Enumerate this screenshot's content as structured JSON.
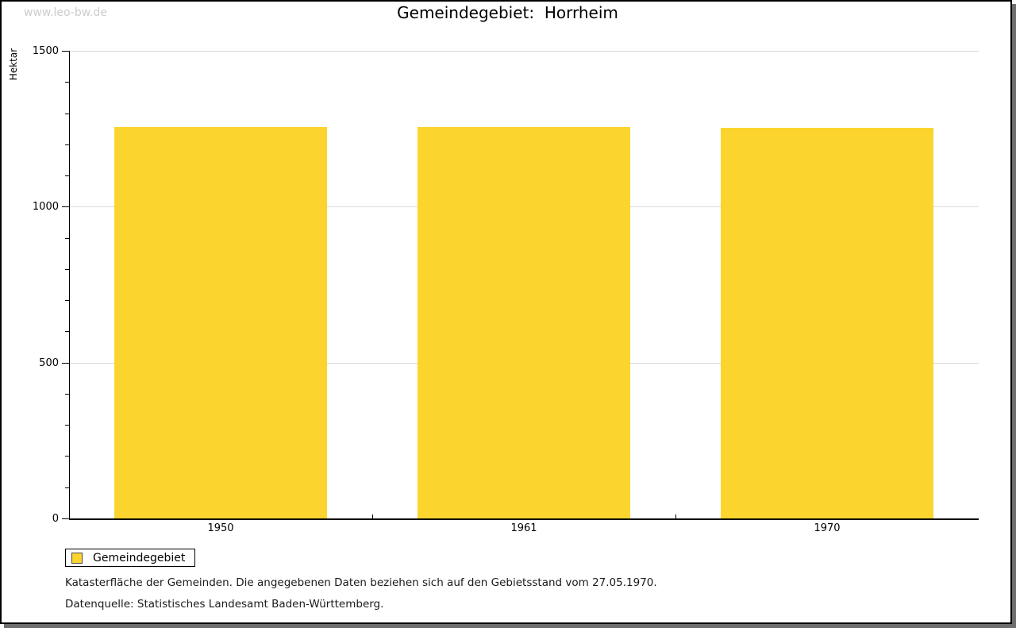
{
  "watermark": "www.leo-bw.de",
  "chart_data": {
    "type": "bar",
    "title": "Gemeindegebiet:  Horrheim",
    "categories": [
      "1950",
      "1961",
      "1970"
    ],
    "series": [
      {
        "name": "Gemeindegebiet",
        "values": [
          1255,
          1255,
          1253
        ]
      }
    ],
    "xlabel": "",
    "ylabel": "Hektar",
    "ylim": [
      0,
      1500
    ],
    "yticks": [
      0,
      500,
      1000,
      1500
    ],
    "minor_tick_step": 100,
    "grid": true,
    "legend_position": "below-left",
    "bar_color": "#fcd42e",
    "grid_color": "#d9d9d9"
  },
  "legend": {
    "items": [
      {
        "label": "Gemeindegebiet",
        "color": "#fcd42e"
      }
    ]
  },
  "notes": [
    "Katasterfläche der Gemeinden. Die angegebenen Daten beziehen sich auf den Gebietsstand vom 27.05.1970.",
    "Datenquelle: Statistisches Landesamt Baden-Württemberg."
  ]
}
